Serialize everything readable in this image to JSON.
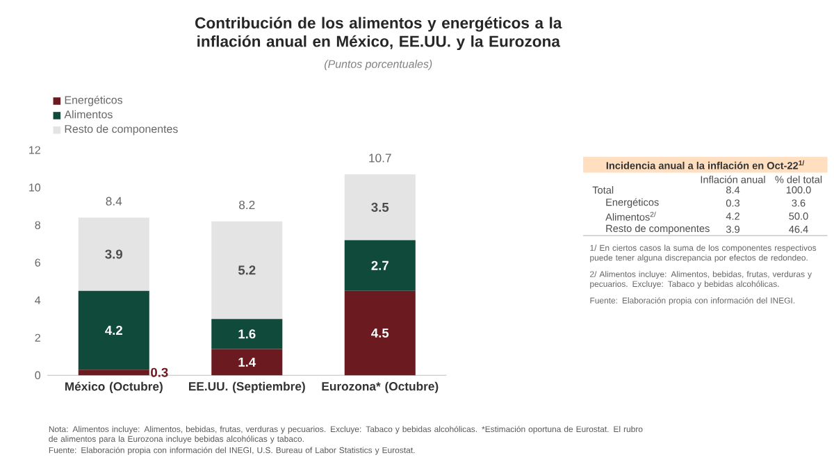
{
  "chart_data": {
    "type": "bar",
    "stacked": true,
    "title": "Contribución de los alimentos y energéticos a la inflación anual en México, EE.UU. y la Eurozona",
    "subtitle": "(Puntos porcentuales)",
    "categories": [
      "México (Octubre)",
      "EE.UU. (Septiembre)",
      "Eurozona* (Octubre)"
    ],
    "series": [
      {
        "name": "Energéticos",
        "color": "#6b1a1f",
        "values": [
          0.3,
          1.4,
          4.5
        ]
      },
      {
        "name": "Alimentos",
        "color": "#0f4a3a",
        "values": [
          4.2,
          1.6,
          2.7
        ]
      },
      {
        "name": "Resto de componentes",
        "color": "#e4e4e4",
        "values": [
          3.9,
          5.2,
          3.5
        ]
      }
    ],
    "data_labels": true,
    "totals": [
      "8.4",
      "8.2",
      "10.7"
    ],
    "ylim": [
      0,
      12
    ],
    "yticks": [
      0,
      2,
      4,
      6,
      8,
      10,
      12
    ],
    "legend": "top left",
    "grid": false,
    "annotations": [
      "Incidencia anual a la inflación en Oct-22$^{1/}$",
      "Inflación anual",
      "% del total",
      "Total",
      "8.4",
      "100.0",
      "Energéticos",
      "0.3",
      "3.6",
      "Alimentos$^{2/}$",
      "4.2",
      "50.0",
      "Resto de componentes",
      "3.9",
      "46.4",
      "1/ En ciertos casos la suma de los componentes respectivos puede tener alguna discrepancia por efectos de redondeo.",
      "2/ Alimentos incluye: Alimentos, bebidas, frutas, verduras y pecuarios. Excluye: Tabaco y bebidas alcohólicas.",
      "Fuente: Elaboración propia con información del INEGI.",
      "Nota: Alimentos incluye: Alimentos, bebidas, frutas, verduras y pecuarios. Excluye: Tabaco y bebidas alcohólicas. *Estimación oportuna de Eurostat. El rubro de alimentos para la Eurozona incluye bebidas alcohólicas y tabaco.",
      "Fuente: Elaboración propia con información del INEGI, U.S. Bureau of Labor Statistics y Eurostat."
    ]
  }
}
